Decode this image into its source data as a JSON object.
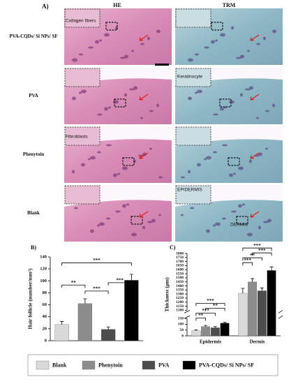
{
  "panel_a": {
    "label": "A)",
    "columns": [
      "HE",
      "TRM"
    ],
    "rows": [
      "PVA-CQDs/ Si NPs/ SF",
      "PVA",
      "Phenytoin",
      "Blank"
    ],
    "insets": [
      "Collagen fibers",
      "Keratinocyte",
      "Fibroblasts",
      "EPIDERMIS",
      "DERMIS"
    ]
  },
  "chart_data": [
    {
      "type": "bar",
      "panel": "B)",
      "ylabel": "Hair follicle (number/mm²)",
      "categories": [
        null
      ],
      "series": [
        {
          "name": "Blank",
          "color": "#d9d9d9",
          "values": [
            27
          ],
          "errors": [
            5
          ]
        },
        {
          "name": "Phenytoin",
          "color": "#8c8c8c",
          "values": [
            62
          ],
          "errors": [
            8
          ]
        },
        {
          "name": "PVA",
          "color": "#4d4d4d",
          "values": [
            19
          ],
          "errors": [
            4
          ]
        },
        {
          "name": "PVA-CQDs/ Si NPs/ SF",
          "color": "#000000",
          "values": [
            101
          ],
          "errors": [
            10
          ]
        }
      ],
      "ylim": [
        0,
        140
      ],
      "yticks": [
        0,
        20,
        40,
        60,
        80,
        100,
        120,
        140
      ],
      "annotations": [
        "**",
        "***",
        "***",
        "***"
      ]
    },
    {
      "type": "bar",
      "panel": "C)",
      "ylabel": "Thickness (µm)",
      "categories": [
        "Epidermis",
        "Dermis"
      ],
      "series": [
        {
          "color": "#d9d9d9",
          "values": [
            45,
            1310
          ],
          "errors": [
            8,
            60
          ]
        },
        {
          "color": "#8c8c8c",
          "values": [
            80,
            1450
          ],
          "errors": [
            10,
            40
          ]
        },
        {
          "color": "#4d4d4d",
          "values": [
            70,
            1340
          ],
          "errors": [
            10,
            35
          ]
        },
        {
          "color": "#000000",
          "values": [
            110,
            1590
          ],
          "errors": [
            8,
            45
          ]
        }
      ],
      "ylim": [
        0,
        1800
      ],
      "ybreak": [
        150,
        1100
      ],
      "yticks": [
        0,
        50,
        100,
        150,
        1100,
        1150,
        1200,
        1250,
        1300,
        1350,
        1400,
        1450,
        1500,
        1550,
        1600,
        1650,
        1700,
        1750,
        1800
      ],
      "annotations": [
        "**",
        "***",
        "**",
        "***",
        "***",
        "**",
        "***",
        "***"
      ]
    }
  ]
}
